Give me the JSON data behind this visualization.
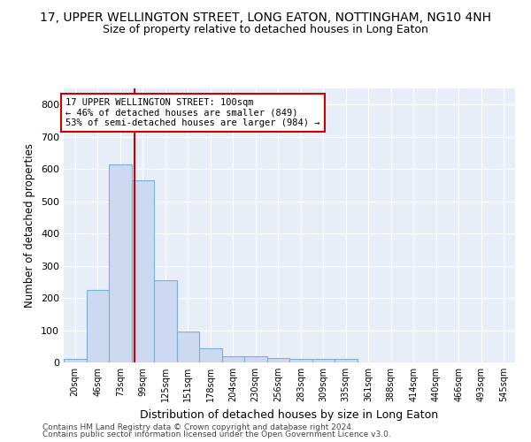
{
  "title": "17, UPPER WELLINGTON STREET, LONG EATON, NOTTINGHAM, NG10 4NH",
  "subtitle": "Size of property relative to detached houses in Long Eaton",
  "xlabel": "Distribution of detached houses by size in Long Eaton",
  "ylabel": "Number of detached properties",
  "bar_color": "#ccd9f0",
  "bar_edge_color": "#7bafd4",
  "bar_heights": [
    10,
    225,
    615,
    565,
    255,
    95,
    45,
    20,
    20,
    15,
    10,
    10,
    10,
    0,
    0,
    0,
    0,
    0,
    0,
    0
  ],
  "x_labels": [
    "20sqm",
    "46sqm",
    "73sqm",
    "99sqm",
    "125sqm",
    "151sqm",
    "178sqm",
    "204sqm",
    "230sqm",
    "256sqm",
    "283sqm",
    "309sqm",
    "335sqm",
    "361sqm",
    "388sqm",
    "414sqm",
    "440sqm",
    "466sqm",
    "493sqm",
    "545sqm"
  ],
  "num_bins": 20,
  "x_min": 0,
  "x_max": 20,
  "red_line_bin": 3.15,
  "ylim": [
    0,
    850
  ],
  "yticks": [
    0,
    100,
    200,
    300,
    400,
    500,
    600,
    700,
    800
  ],
  "annotation_text_line1": "17 UPPER WELLINGTON STREET: 100sqm",
  "annotation_text_line2": "← 46% of detached houses are smaller (849)",
  "annotation_text_line3": "53% of semi-detached houses are larger (984) →",
  "annotation_box_color": "#ffffff",
  "annotation_border_color": "#cc0000",
  "footer_line1": "Contains HM Land Registry data © Crown copyright and database right 2024.",
  "footer_line2": "Contains public sector information licensed under the Open Government Licence v3.0.",
  "background_color": "#e8eef8",
  "grid_color": "#ffffff",
  "fig_background": "#ffffff",
  "title_fontsize": 10,
  "subtitle_fontsize": 9
}
